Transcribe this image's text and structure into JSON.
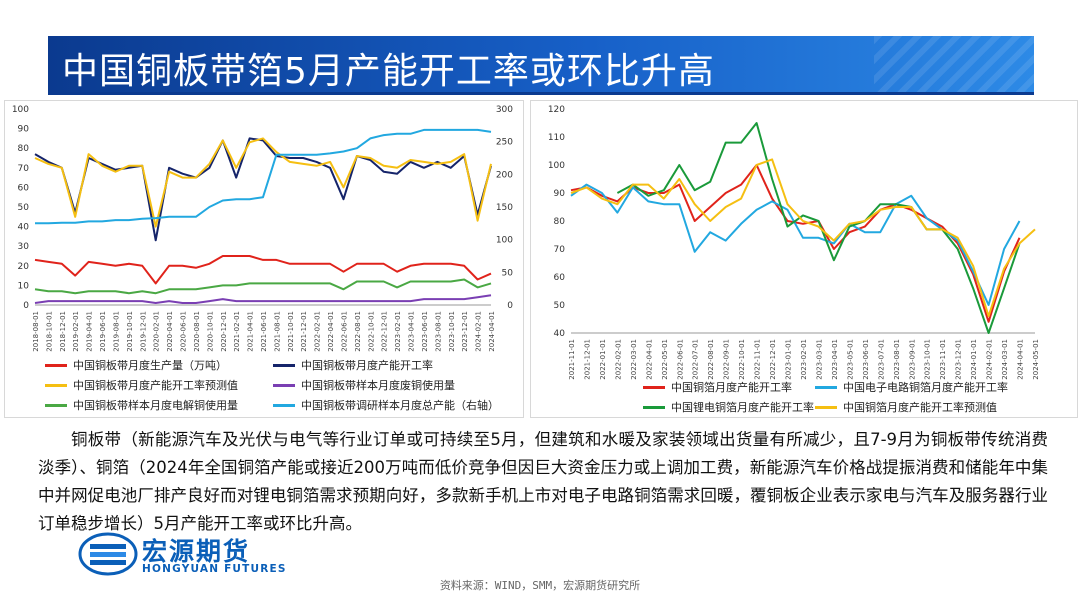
{
  "title": "中国铜板带箔5月产能开工率或环比升高",
  "paragraph": "铜板带（新能源汽车及光伏与电气等行业订单或可持续至5月，但建筑和水暖及家装领域出货量有所减少，且7-9月为铜板带传统消费淡季）、铜箔（2024年全国铜箔产能或接近200万吨而低价竞争但因巨大资金压力或上调加工费，新能源汽车价格战提振消费和储能年中集中并网促电池厂排产良好而对锂电铜箔需求预期向好，多款新手机上市对电子电路铜箔需求回暖，覆铜板企业表示家电与汽车及服务器行业订单稳步增长）5月产能开工率或环比升高。",
  "logo": {
    "cn": "宏源期货",
    "en": "HONGYUAN FUTURES"
  },
  "source": "资料来源：WIND，SMM，宏源期货研究所",
  "chart_data": [
    {
      "type": "line",
      "ylim": [
        0,
        100
      ],
      "y2lim": [
        0,
        300
      ],
      "yticks": [
        0,
        10,
        20,
        30,
        40,
        50,
        60,
        70,
        80,
        90,
        100
      ],
      "y2ticks": [
        0,
        50,
        100,
        150,
        200,
        250,
        300
      ],
      "x": [
        "2018-08-01",
        "2018-10-01",
        "2018-12-01",
        "2019-02-01",
        "2019-04-01",
        "2019-06-01",
        "2019-08-01",
        "2019-10-01",
        "2019-12-01",
        "2020-02-01",
        "2020-04-01",
        "2020-06-01",
        "2020-08-01",
        "2020-10-01",
        "2020-12-01",
        "2021-02-01",
        "2021-04-01",
        "2021-06-01",
        "2021-08-01",
        "2021-10-01",
        "2021-12-01",
        "2022-02-01",
        "2022-04-01",
        "2022-06-01",
        "2022-08-01",
        "2022-10-01",
        "2022-12-01",
        "2023-02-01",
        "2023-04-01",
        "2023-06-01",
        "2023-08-01",
        "2023-10-01",
        "2023-12-01",
        "2024-02-01",
        "2024-04-01"
      ],
      "series": [
        {
          "name": "中国铜板带月度生产量（万吨）",
          "color": "#e0231b",
          "axis": "left",
          "values": [
            23,
            22,
            21,
            15,
            22,
            21,
            20,
            21,
            20,
            11,
            20,
            20,
            19,
            21,
            25,
            25,
            25,
            23,
            23,
            21,
            21,
            21,
            21,
            17,
            21,
            21,
            21,
            17,
            20,
            21,
            21,
            21,
            20,
            13,
            16
          ]
        },
        {
          "name": "中国铜板带月度产能开工率",
          "color": "#15246a",
          "axis": "left",
          "values": [
            77,
            73,
            70,
            47,
            75,
            72,
            69,
            70,
            71,
            33,
            70,
            67,
            65,
            70,
            84,
            65,
            85,
            84,
            76,
            75,
            75,
            73,
            70,
            54,
            76,
            74,
            68,
            67,
            73,
            70,
            73,
            70,
            76,
            46,
            71
          ]
        },
        {
          "name": "中国铜板带月度产能开工率预测值",
          "color": "#f5bf12",
          "axis": "left",
          "values": [
            75,
            72,
            70,
            45,
            77,
            71,
            68,
            71,
            71,
            40,
            68,
            65,
            65,
            72,
            84,
            70,
            83,
            85,
            78,
            73,
            72,
            71,
            73,
            60,
            76,
            75,
            71,
            70,
            74,
            73,
            72,
            73,
            77,
            43,
            72
          ]
        },
        {
          "name": "中国铜板带样本月度废铜使用量",
          "color": "#7a3fb3",
          "axis": "left",
          "values": [
            1,
            2,
            2,
            2,
            2,
            2,
            2,
            2,
            2,
            1,
            2,
            1,
            1,
            2,
            3,
            2,
            2,
            2,
            2,
            2,
            2,
            2,
            2,
            2,
            2,
            2,
            2,
            2,
            2,
            3,
            3,
            3,
            3,
            4,
            5
          ]
        },
        {
          "name": "中国铜板带样本月度电解铜使用量",
          "color": "#4aa844",
          "axis": "left",
          "values": [
            8,
            7,
            7,
            6,
            7,
            7,
            7,
            6,
            7,
            6,
            8,
            8,
            8,
            9,
            10,
            10,
            11,
            11,
            11,
            11,
            11,
            11,
            11,
            8,
            12,
            12,
            12,
            9,
            12,
            12,
            12,
            12,
            13,
            9,
            11
          ]
        },
        {
          "name": "中国铜板带调研样本月度总产能（右轴）",
          "color": "#22a8e0",
          "axis": "right",
          "values": [
            125,
            125,
            126,
            126,
            128,
            128,
            130,
            130,
            132,
            133,
            135,
            135,
            135,
            150,
            160,
            162,
            162,
            165,
            230,
            230,
            230,
            230,
            232,
            235,
            240,
            255,
            260,
            262,
            262,
            268,
            268,
            268,
            268,
            268,
            265
          ]
        }
      ]
    },
    {
      "type": "line",
      "ylim": [
        40,
        120
      ],
      "yticks": [
        40,
        50,
        60,
        70,
        80,
        90,
        100,
        110,
        120
      ],
      "x": [
        "2021-11-01",
        "2021-12-01",
        "2022-01-01",
        "2022-02-01",
        "2022-03-01",
        "2022-04-01",
        "2022-05-01",
        "2022-06-01",
        "2022-07-01",
        "2022-08-01",
        "2022-09-01",
        "2022-10-01",
        "2022-11-01",
        "2022-12-01",
        "2023-01-01",
        "2023-02-01",
        "2023-03-01",
        "2023-04-01",
        "2023-05-01",
        "2023-06-01",
        "2023-07-01",
        "2023-08-01",
        "2023-09-01",
        "2023-10-01",
        "2023-11-01",
        "2023-12-01",
        "2024-01-01",
        "2024-02-01",
        "2024-03-01",
        "2024-04-01",
        "2024-05-01"
      ],
      "series": [
        {
          "name": "中国铜箔月度产能开工率",
          "color": "#e0231b",
          "values": [
            91,
            92,
            89,
            87,
            92,
            90,
            90,
            93,
            80,
            85,
            90,
            93,
            100,
            88,
            80,
            79,
            80,
            70,
            76,
            78,
            84,
            86,
            84,
            81,
            78,
            72,
            61,
            44,
            62,
            74,
            null
          ]
        },
        {
          "name": "中国电子电路铜箔月度产能开工率",
          "color": "#22a8e0",
          "values": [
            89,
            93,
            90,
            83,
            92,
            87,
            86,
            86,
            69,
            76,
            73,
            79,
            84,
            87,
            84,
            74,
            74,
            72,
            79,
            76,
            76,
            86,
            89,
            81,
            77,
            73,
            62,
            50,
            70,
            80,
            null
          ]
        },
        {
          "name": "中国锂电铜箔月度产能开工率",
          "color": "#1a9a3a",
          "values": [
            null,
            null,
            null,
            90,
            93,
            89,
            91,
            100,
            91,
            94,
            108,
            108,
            115,
            95,
            78,
            82,
            80,
            66,
            78,
            80,
            86,
            86,
            85,
            77,
            77,
            70,
            56,
            40,
            56,
            72,
            null
          ]
        },
        {
          "name": "中国铜箔月度产能开工率预测值",
          "color": "#f5bf12",
          "values": [
            90,
            92,
            88,
            86,
            93,
            93,
            88,
            95,
            86,
            80,
            85,
            88,
            100,
            102,
            86,
            80,
            78,
            73,
            79,
            80,
            84,
            85,
            85,
            77,
            77,
            74,
            64,
            46,
            63,
            72,
            77
          ]
        }
      ]
    }
  ]
}
